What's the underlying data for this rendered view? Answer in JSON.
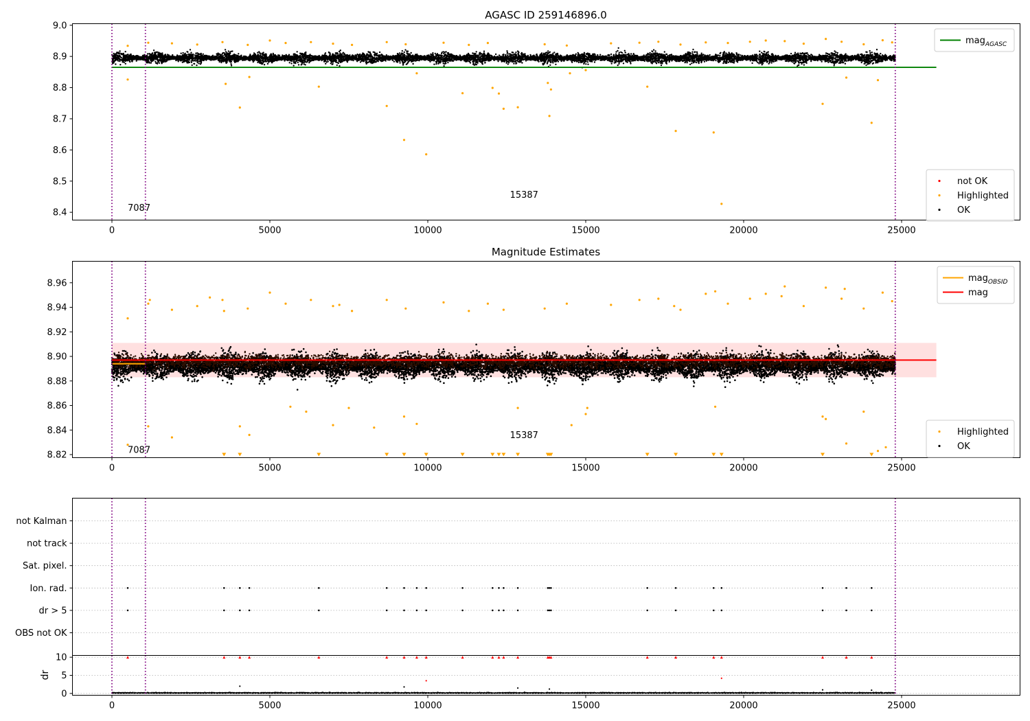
{
  "chart_data": [
    {
      "type": "scatter",
      "title": "AGASC ID 259146896.0",
      "xlim": [
        -1250,
        28750
      ],
      "ylim": [
        8.375,
        9.005
      ],
      "xticks": [
        0,
        5000,
        10000,
        15000,
        20000,
        25000
      ],
      "xtick_labels": [
        "0",
        "5000",
        "10000",
        "15000",
        "20000",
        "25000"
      ],
      "yticks": [
        8.4,
        8.5,
        8.6,
        8.7,
        8.8,
        8.9,
        9.0
      ],
      "ytick_labels": [
        "8.4",
        "8.5",
        "8.6",
        "8.7",
        "8.8",
        "8.9",
        "9.0"
      ],
      "obsid_boundaries": [
        0,
        1060,
        24800
      ],
      "obsid_labels": [
        {
          "x": 500,
          "y": 8.405,
          "text": "7087"
        },
        {
          "x": 12600,
          "y": 8.447,
          "text": "15387"
        }
      ],
      "ok_band": {
        "x_range": [
          0,
          24800
        ],
        "center": 8.895,
        "spread": 0.018
      },
      "lines": [
        {
          "name": "mag_AGASC",
          "y": 8.865,
          "x_range": [
            0,
            26100
          ],
          "color": "#008000"
        }
      ],
      "highlighted": {
        "color": "#ffa500",
        "points": [
          [
            500,
            8.826
          ],
          [
            3600,
            8.812
          ],
          [
            4050,
            8.736
          ],
          [
            4350,
            8.834
          ],
          [
            6550,
            8.803
          ],
          [
            8700,
            8.741
          ],
          [
            9250,
            8.632
          ],
          [
            9650,
            8.846
          ],
          [
            9950,
            8.586
          ],
          [
            11100,
            8.782
          ],
          [
            12050,
            8.799
          ],
          [
            12250,
            8.781
          ],
          [
            12400,
            8.732
          ],
          [
            12850,
            8.737
          ],
          [
            13800,
            8.815
          ],
          [
            13850,
            8.709
          ],
          [
            13900,
            8.794
          ],
          [
            14500,
            8.846
          ],
          [
            15000,
            8.856
          ],
          [
            16950,
            8.803
          ],
          [
            17850,
            8.661
          ],
          [
            19050,
            8.656
          ],
          [
            19300,
            8.427
          ],
          [
            22500,
            8.748
          ],
          [
            23250,
            8.832
          ],
          [
            24050,
            8.687
          ],
          [
            24250,
            8.824
          ]
        ],
        "upper_points": [
          [
            500,
            8.934
          ],
          [
            1150,
            8.944
          ],
          [
            1900,
            8.942
          ],
          [
            2700,
            8.938
          ],
          [
            3500,
            8.946
          ],
          [
            4300,
            8.937
          ],
          [
            5000,
            8.951
          ],
          [
            5500,
            8.943
          ],
          [
            6300,
            8.946
          ],
          [
            7000,
            8.941
          ],
          [
            7600,
            8.937
          ],
          [
            8700,
            8.946
          ],
          [
            9300,
            8.939
          ],
          [
            10500,
            8.944
          ],
          [
            11300,
            8.937
          ],
          [
            11900,
            8.943
          ],
          [
            13700,
            8.939
          ],
          [
            14400,
            8.935
          ],
          [
            15800,
            8.942
          ],
          [
            16700,
            8.944
          ],
          [
            17300,
            8.947
          ],
          [
            18000,
            8.938
          ],
          [
            18800,
            8.945
          ],
          [
            19500,
            8.943
          ],
          [
            20200,
            8.947
          ],
          [
            20700,
            8.951
          ],
          [
            21300,
            8.949
          ],
          [
            21900,
            8.941
          ],
          [
            22600,
            8.956
          ],
          [
            23100,
            8.947
          ],
          [
            23800,
            8.939
          ],
          [
            24400,
            8.952
          ],
          [
            24700,
            8.945
          ]
        ]
      },
      "legends": [
        {
          "position": "top-right",
          "items": [
            {
              "label": "mag",
              "sub": "AGASC",
              "kind": "line",
              "color": "#008000"
            }
          ]
        },
        {
          "position": "lower-right",
          "items": [
            {
              "label": "not OK",
              "kind": "dot",
              "color": "#ff0000"
            },
            {
              "label": "Highlighted",
              "kind": "dot",
              "color": "#ffa500"
            },
            {
              "label": "OK",
              "kind": "dot",
              "color": "#000000"
            }
          ]
        }
      ]
    },
    {
      "type": "scatter",
      "title": "Magnitude Estimates",
      "xlim": [
        -1250,
        28750
      ],
      "ylim": [
        8.8175,
        8.9775
      ],
      "xticks": [
        0,
        5000,
        10000,
        15000,
        20000,
        25000
      ],
      "xtick_labels": [
        "0",
        "5000",
        "10000",
        "15000",
        "20000",
        "25000"
      ],
      "yticks": [
        8.82,
        8.84,
        8.86,
        8.88,
        8.9,
        8.92,
        8.94,
        8.96
      ],
      "ytick_labels": [
        "8.82",
        "8.84",
        "8.86",
        "8.88",
        "8.90",
        "8.92",
        "8.94",
        "8.96"
      ],
      "obsid_boundaries": [
        0,
        1060,
        24800
      ],
      "obsid_labels": [
        {
          "x": 500,
          "y": 8.8215,
          "text": "7087"
        },
        {
          "x": 12600,
          "y": 8.8335,
          "text": "15387"
        }
      ],
      "ok_band": {
        "x_range": [
          0,
          24800
        ],
        "center": 8.892,
        "spread": 0.011
      },
      "mag_band": {
        "x_range": [
          0,
          26100
        ],
        "y_range": [
          8.883,
          8.911
        ],
        "color": "#ff0000",
        "alpha": 0.12
      },
      "lines": [
        {
          "name": "mag",
          "y": 8.897,
          "x_range": [
            0,
            26100
          ],
          "color": "#ff0000"
        },
        {
          "name": "mag_OBSID",
          "y": 8.894,
          "x_range": [
            0,
            1060
          ],
          "color": "#ffa500"
        }
      ],
      "highlighted": {
        "color": "#ffa500",
        "points": [
          [
            500,
            8.828
          ],
          [
            1150,
            8.843
          ],
          [
            1900,
            8.834
          ],
          [
            4350,
            8.836
          ],
          [
            4050,
            8.843
          ],
          [
            5650,
            8.859
          ],
          [
            6150,
            8.855
          ],
          [
            7000,
            8.844
          ],
          [
            7500,
            8.858
          ],
          [
            8300,
            8.842
          ],
          [
            9250,
            8.851
          ],
          [
            9650,
            8.845
          ],
          [
            12850,
            8.858
          ],
          [
            14550,
            8.844
          ],
          [
            15000,
            8.853
          ],
          [
            15050,
            8.858
          ],
          [
            19100,
            8.859
          ],
          [
            22500,
            8.851
          ],
          [
            22600,
            8.849
          ],
          [
            23250,
            8.829
          ],
          [
            23800,
            8.855
          ],
          [
            24250,
            8.823
          ],
          [
            24500,
            8.826
          ]
        ],
        "upper_points": [
          [
            500,
            8.931
          ],
          [
            1150,
            8.943
          ],
          [
            1200,
            8.946
          ],
          [
            1900,
            8.938
          ],
          [
            2700,
            8.941
          ],
          [
            3100,
            8.948
          ],
          [
            3500,
            8.946
          ],
          [
            3550,
            8.937
          ],
          [
            4300,
            8.939
          ],
          [
            5000,
            8.952
          ],
          [
            5500,
            8.943
          ],
          [
            6300,
            8.946
          ],
          [
            7000,
            8.941
          ],
          [
            7200,
            8.942
          ],
          [
            7600,
            8.937
          ],
          [
            8700,
            8.946
          ],
          [
            9300,
            8.939
          ],
          [
            10500,
            8.944
          ],
          [
            11300,
            8.937
          ],
          [
            11900,
            8.943
          ],
          [
            12400,
            8.938
          ],
          [
            13700,
            8.939
          ],
          [
            14400,
            8.943
          ],
          [
            15800,
            8.942
          ],
          [
            16700,
            8.946
          ],
          [
            17300,
            8.947
          ],
          [
            17800,
            8.941
          ],
          [
            18000,
            8.938
          ],
          [
            18800,
            8.951
          ],
          [
            19100,
            8.953
          ],
          [
            19500,
            8.943
          ],
          [
            20200,
            8.947
          ],
          [
            20700,
            8.951
          ],
          [
            21200,
            8.949
          ],
          [
            21300,
            8.957
          ],
          [
            21900,
            8.941
          ],
          [
            22600,
            8.956
          ],
          [
            23100,
            8.947
          ],
          [
            23200,
            8.955
          ],
          [
            23800,
            8.939
          ],
          [
            24400,
            8.952
          ],
          [
            24700,
            8.945
          ]
        ],
        "below_axis_markers": [
          3550,
          4050,
          6550,
          8700,
          9250,
          9950,
          11100,
          12050,
          12250,
          12400,
          12850,
          13800,
          13850,
          13900,
          16950,
          17850,
          19050,
          19300,
          22500,
          24050
        ]
      },
      "legends": [
        {
          "position": "top-right",
          "items": [
            {
              "label": "mag",
              "sub": "OBSID",
              "kind": "line",
              "color": "#ffa500"
            },
            {
              "label": "mag",
              "kind": "line",
              "color": "#ff0000"
            }
          ]
        },
        {
          "position": "lower-right",
          "items": [
            {
              "label": "Highlighted",
              "kind": "dot",
              "color": "#ffa500"
            },
            {
              "label": "OK",
              "kind": "dot",
              "color": "#000000"
            }
          ]
        }
      ]
    },
    {
      "type": "scatter",
      "title": "",
      "xlim": [
        -1250,
        28750
      ],
      "xticks": [
        0,
        5000,
        10000,
        15000,
        20000,
        25000
      ],
      "xtick_labels": [
        "0",
        "5000",
        "10000",
        "15000",
        "20000",
        "25000"
      ],
      "obsid_boundaries": [
        0,
        1060,
        24800
      ],
      "flag_rows": [
        "not Kalman",
        "not track",
        "Sat. pixel.",
        "Ion. rad.",
        "dr > 5",
        "OBS not OK"
      ],
      "flag_points": {
        "Ion. rad.": [
          500,
          3550,
          4050,
          4350,
          6550,
          8700,
          9250,
          9650,
          9950,
          11100,
          12050,
          12250,
          12400,
          12850,
          13800,
          13850,
          13900,
          16950,
          17850,
          19050,
          19300,
          22500,
          23250,
          24050
        ],
        "dr > 5": [
          500,
          3550,
          4050,
          4350,
          6550,
          8700,
          9250,
          9650,
          9950,
          11100,
          12050,
          12250,
          12400,
          12850,
          13800,
          13850,
          13900,
          16950,
          17850,
          19050,
          19300,
          22500,
          23250,
          24050
        ]
      }
    },
    {
      "type": "scatter",
      "title": "",
      "ylabel": "dr",
      "xlim": [
        -1250,
        28750
      ],
      "ylim": [
        -0.5,
        10.5
      ],
      "xticks": [
        0,
        5000,
        10000,
        15000,
        20000,
        25000
      ],
      "xtick_labels": [
        "0",
        "5000",
        "10000",
        "15000",
        "20000",
        "25000"
      ],
      "yticks": [
        0,
        5,
        10
      ],
      "ytick_labels": [
        "0",
        "5",
        "10"
      ],
      "obsid_boundaries": [
        0,
        1060,
        24800
      ],
      "clip_markers": {
        "color": "#ff0000",
        "y": 10,
        "x": [
          500,
          3550,
          4050,
          4350,
          6550,
          8700,
          9250,
          9650,
          9950,
          11100,
          12050,
          12250,
          12400,
          12850,
          13800,
          13850,
          13900,
          16950,
          17850,
          19050,
          19300,
          22500,
          23250,
          24050
        ]
      },
      "outliers": [
        [
          4050,
          2.0
        ],
        [
          9250,
          1.8
        ],
        [
          9950,
          3.5
        ],
        [
          12850,
          1.5
        ],
        [
          13850,
          1.2
        ],
        [
          19300,
          4.2
        ],
        [
          22500,
          1.0
        ],
        [
          24050,
          0.9
        ]
      ]
    }
  ]
}
